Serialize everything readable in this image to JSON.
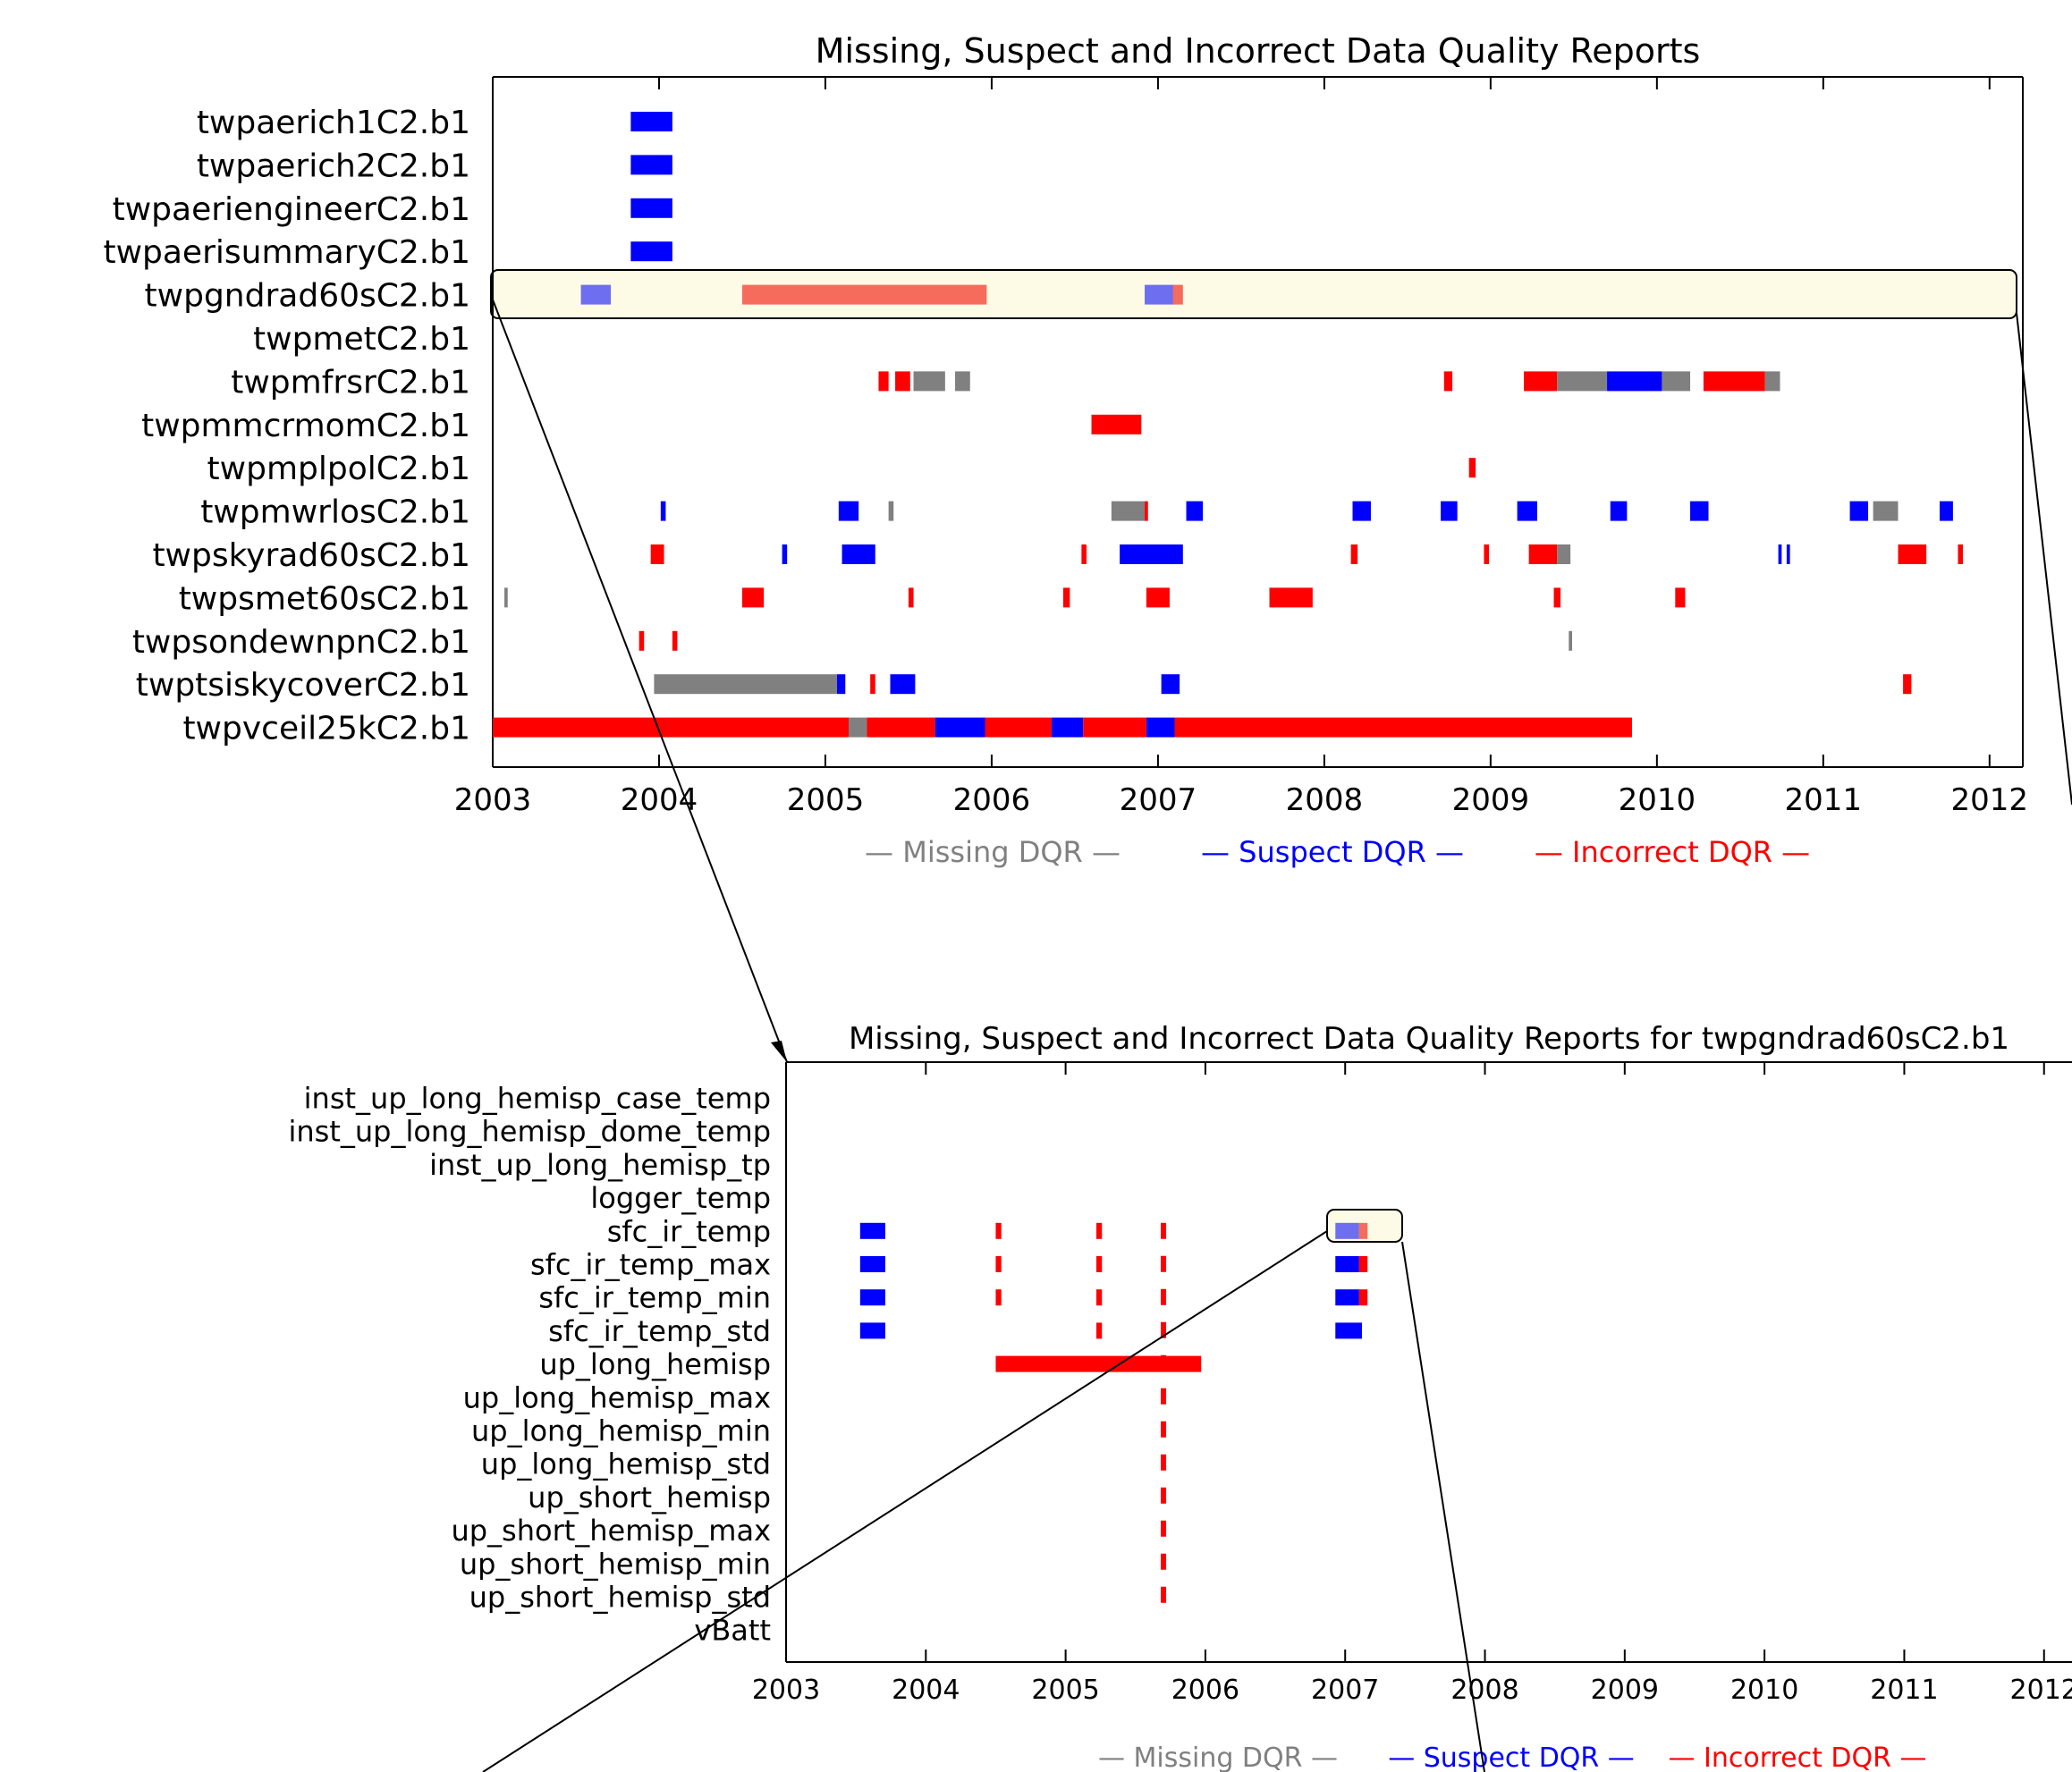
{
  "colors": {
    "missing": "#808080",
    "suspect": "#0000ff",
    "incorrect": "#ff0000",
    "suspect_light": "#6e6ef0",
    "incorrect_light": "#f56b5c",
    "highlight_fill": "#fdfbe6",
    "axis": "#000000"
  },
  "legend": {
    "missing": "— Missing DQR —",
    "suspect": "— Suspect DQR —",
    "incorrect": "— Incorrect DQR —"
  },
  "chart_data": [
    {
      "type": "timeline",
      "title": "Missing, Suspect and Incorrect Data Quality Reports",
      "xlim": [
        2003,
        2012.2
      ],
      "x_ticks": [
        "2003",
        "2004",
        "2005",
        "2006",
        "2007",
        "2008",
        "2009",
        "2010",
        "2011",
        "2012"
      ],
      "categories": [
        "twpaerich1C2.b1",
        "twpaerich2C2.b1",
        "twpaeriengineerC2.b1",
        "twpaerisummaryC2.b1",
        "twpgndrad60sC2.b1",
        "twpmetC2.b1",
        "twpmfrsrC2.b1",
        "twpmmcrmomC2.b1",
        "twpmplpolC2.b1",
        "twpmwrlosC2.b1",
        "twpskyrad60sC2.b1",
        "twpsmet60sC2.b1",
        "twpsondewnpnC2.b1",
        "twptsiskycoverC2.b1",
        "twpvceil25kC2.b1"
      ],
      "highlighted_row": 4,
      "segments": [
        {
          "row": 0,
          "start": 2003.83,
          "end": 2004.08,
          "kind": "suspect"
        },
        {
          "row": 1,
          "start": 2003.83,
          "end": 2004.08,
          "kind": "suspect"
        },
        {
          "row": 2,
          "start": 2003.83,
          "end": 2004.08,
          "kind": "suspect"
        },
        {
          "row": 3,
          "start": 2003.83,
          "end": 2004.08,
          "kind": "suspect"
        },
        {
          "row": 4,
          "start": 2003.53,
          "end": 2003.71,
          "kind": "suspect_light"
        },
        {
          "row": 4,
          "start": 2004.5,
          "end": 2005.97,
          "kind": "incorrect_light"
        },
        {
          "row": 4,
          "start": 2006.92,
          "end": 2007.1,
          "kind": "suspect_light"
        },
        {
          "row": 4,
          "start": 2007.09,
          "end": 2007.15,
          "kind": "incorrect_light"
        },
        {
          "row": 6,
          "start": 2005.32,
          "end": 2005.38,
          "kind": "incorrect"
        },
        {
          "row": 6,
          "start": 2005.42,
          "end": 2005.51,
          "kind": "incorrect"
        },
        {
          "row": 6,
          "start": 2005.53,
          "end": 2005.72,
          "kind": "missing"
        },
        {
          "row": 6,
          "start": 2005.78,
          "end": 2005.87,
          "kind": "missing"
        },
        {
          "row": 6,
          "start": 2008.72,
          "end": 2008.77,
          "kind": "incorrect"
        },
        {
          "row": 6,
          "start": 2009.2,
          "end": 2009.4,
          "kind": "incorrect"
        },
        {
          "row": 6,
          "start": 2009.4,
          "end": 2009.7,
          "kind": "missing"
        },
        {
          "row": 6,
          "start": 2009.7,
          "end": 2010.03,
          "kind": "suspect"
        },
        {
          "row": 6,
          "start": 2010.03,
          "end": 2010.2,
          "kind": "missing"
        },
        {
          "row": 6,
          "start": 2010.28,
          "end": 2010.65,
          "kind": "incorrect"
        },
        {
          "row": 6,
          "start": 2010.65,
          "end": 2010.74,
          "kind": "missing"
        },
        {
          "row": 7,
          "start": 2006.6,
          "end": 2006.9,
          "kind": "incorrect"
        },
        {
          "row": 8,
          "start": 2008.87,
          "end": 2008.91,
          "kind": "incorrect"
        },
        {
          "row": 9,
          "start": 2004.01,
          "end": 2004.04,
          "kind": "suspect"
        },
        {
          "row": 9,
          "start": 2005.08,
          "end": 2005.2,
          "kind": "suspect"
        },
        {
          "row": 9,
          "start": 2005.38,
          "end": 2005.41,
          "kind": "missing"
        },
        {
          "row": 9,
          "start": 2006.72,
          "end": 2006.92,
          "kind": "missing"
        },
        {
          "row": 9,
          "start": 2006.92,
          "end": 2006.94,
          "kind": "incorrect"
        },
        {
          "row": 9,
          "start": 2007.17,
          "end": 2007.27,
          "kind": "suspect"
        },
        {
          "row": 9,
          "start": 2008.17,
          "end": 2008.28,
          "kind": "suspect"
        },
        {
          "row": 9,
          "start": 2008.7,
          "end": 2008.8,
          "kind": "suspect"
        },
        {
          "row": 9,
          "start": 2009.16,
          "end": 2009.28,
          "kind": "suspect"
        },
        {
          "row": 9,
          "start": 2009.72,
          "end": 2009.82,
          "kind": "suspect"
        },
        {
          "row": 9,
          "start": 2010.2,
          "end": 2010.31,
          "kind": "suspect"
        },
        {
          "row": 9,
          "start": 2011.16,
          "end": 2011.27,
          "kind": "suspect"
        },
        {
          "row": 9,
          "start": 2011.3,
          "end": 2011.45,
          "kind": "missing"
        },
        {
          "row": 9,
          "start": 2011.7,
          "end": 2011.78,
          "kind": "suspect"
        },
        {
          "row": 10,
          "start": 2003.95,
          "end": 2004.03,
          "kind": "incorrect"
        },
        {
          "row": 10,
          "start": 2004.74,
          "end": 2004.77,
          "kind": "suspect"
        },
        {
          "row": 10,
          "start": 2005.1,
          "end": 2005.3,
          "kind": "suspect"
        },
        {
          "row": 10,
          "start": 2006.54,
          "end": 2006.57,
          "kind": "incorrect"
        },
        {
          "row": 10,
          "start": 2006.77,
          "end": 2007.15,
          "kind": "suspect"
        },
        {
          "row": 10,
          "start": 2008.16,
          "end": 2008.2,
          "kind": "incorrect"
        },
        {
          "row": 10,
          "start": 2008.96,
          "end": 2008.99,
          "kind": "incorrect"
        },
        {
          "row": 10,
          "start": 2009.23,
          "end": 2009.4,
          "kind": "incorrect"
        },
        {
          "row": 10,
          "start": 2009.4,
          "end": 2009.48,
          "kind": "missing"
        },
        {
          "row": 10,
          "start": 2010.73,
          "end": 2010.75,
          "kind": "suspect"
        },
        {
          "row": 10,
          "start": 2010.78,
          "end": 2010.8,
          "kind": "suspect"
        },
        {
          "row": 10,
          "start": 2011.45,
          "end": 2011.62,
          "kind": "incorrect"
        },
        {
          "row": 10,
          "start": 2011.81,
          "end": 2011.84,
          "kind": "incorrect"
        },
        {
          "row": 11,
          "start": 2003.07,
          "end": 2003.09,
          "kind": "missing"
        },
        {
          "row": 11,
          "start": 2004.5,
          "end": 2004.63,
          "kind": "incorrect"
        },
        {
          "row": 11,
          "start": 2005.5,
          "end": 2005.53,
          "kind": "incorrect"
        },
        {
          "row": 11,
          "start": 2006.43,
          "end": 2006.47,
          "kind": "incorrect"
        },
        {
          "row": 11,
          "start": 2006.93,
          "end": 2007.07,
          "kind": "incorrect"
        },
        {
          "row": 11,
          "start": 2007.67,
          "end": 2007.93,
          "kind": "incorrect"
        },
        {
          "row": 11,
          "start": 2009.38,
          "end": 2009.42,
          "kind": "incorrect"
        },
        {
          "row": 11,
          "start": 2010.11,
          "end": 2010.17,
          "kind": "incorrect"
        },
        {
          "row": 12,
          "start": 2003.88,
          "end": 2003.91,
          "kind": "incorrect"
        },
        {
          "row": 12,
          "start": 2004.08,
          "end": 2004.11,
          "kind": "incorrect"
        },
        {
          "row": 12,
          "start": 2009.47,
          "end": 2009.49,
          "kind": "missing"
        },
        {
          "row": 13,
          "start": 2003.97,
          "end": 2005.07,
          "kind": "missing"
        },
        {
          "row": 13,
          "start": 2005.07,
          "end": 2005.12,
          "kind": "suspect"
        },
        {
          "row": 13,
          "start": 2005.27,
          "end": 2005.3,
          "kind": "incorrect"
        },
        {
          "row": 13,
          "start": 2005.39,
          "end": 2005.54,
          "kind": "suspect"
        },
        {
          "row": 13,
          "start": 2007.02,
          "end": 2007.13,
          "kind": "suspect"
        },
        {
          "row": 13,
          "start": 2011.48,
          "end": 2011.53,
          "kind": "incorrect"
        },
        {
          "row": 14,
          "start": 2003.0,
          "end": 2005.14,
          "kind": "incorrect"
        },
        {
          "row": 14,
          "start": 2005.14,
          "end": 2005.25,
          "kind": "missing"
        },
        {
          "row": 14,
          "start": 2005.25,
          "end": 2005.66,
          "kind": "incorrect"
        },
        {
          "row": 14,
          "start": 2005.66,
          "end": 2005.96,
          "kind": "suspect"
        },
        {
          "row": 14,
          "start": 2005.96,
          "end": 2006.36,
          "kind": "incorrect"
        },
        {
          "row": 14,
          "start": 2006.36,
          "end": 2006.55,
          "kind": "suspect"
        },
        {
          "row": 14,
          "start": 2006.55,
          "end": 2006.93,
          "kind": "incorrect"
        },
        {
          "row": 14,
          "start": 2006.93,
          "end": 2007.1,
          "kind": "suspect"
        },
        {
          "row": 14,
          "start": 2007.1,
          "end": 2009.85,
          "kind": "incorrect"
        }
      ]
    },
    {
      "type": "timeline",
      "title": "Missing, Suspect and Incorrect Data Quality Reports for twpgndrad60sC2.b1",
      "xlim": [
        2003,
        2012.2
      ],
      "x_ticks": [
        "2003",
        "2004",
        "2005",
        "2006",
        "2007",
        "2008",
        "2009",
        "2010",
        "2011",
        "2012"
      ],
      "categories": [
        "inst_up_long_hemisp_case_temp",
        "inst_up_long_hemisp_dome_temp",
        "inst_up_long_hemisp_tp",
        "logger_temp",
        "sfc_ir_temp",
        "sfc_ir_temp_max",
        "sfc_ir_temp_min",
        "sfc_ir_temp_std",
        "up_long_hemisp",
        "up_long_hemisp_max",
        "up_long_hemisp_min",
        "up_long_hemisp_std",
        "up_short_hemisp",
        "up_short_hemisp_max",
        "up_short_hemisp_min",
        "up_short_hemisp_std",
        "vBatt"
      ],
      "highlighted_row": 4,
      "segments": [
        {
          "row": 4,
          "start": 2003.53,
          "end": 2003.71,
          "kind": "suspect"
        },
        {
          "row": 5,
          "start": 2003.53,
          "end": 2003.71,
          "kind": "suspect"
        },
        {
          "row": 6,
          "start": 2003.53,
          "end": 2003.71,
          "kind": "suspect"
        },
        {
          "row": 7,
          "start": 2003.53,
          "end": 2003.71,
          "kind": "suspect"
        },
        {
          "row": 4,
          "start": 2004.5,
          "end": 2004.54,
          "kind": "incorrect"
        },
        {
          "row": 5,
          "start": 2004.5,
          "end": 2004.54,
          "kind": "incorrect"
        },
        {
          "row": 6,
          "start": 2004.5,
          "end": 2004.54,
          "kind": "incorrect"
        },
        {
          "row": 4,
          "start": 2005.22,
          "end": 2005.26,
          "kind": "incorrect"
        },
        {
          "row": 5,
          "start": 2005.22,
          "end": 2005.26,
          "kind": "incorrect"
        },
        {
          "row": 6,
          "start": 2005.22,
          "end": 2005.26,
          "kind": "incorrect"
        },
        {
          "row": 7,
          "start": 2005.22,
          "end": 2005.26,
          "kind": "incorrect"
        },
        {
          "row": 8,
          "start": 2004.5,
          "end": 2005.97,
          "kind": "incorrect"
        },
        {
          "row": 4,
          "start": 2006.93,
          "end": 2007.1,
          "kind": "suspect_light"
        },
        {
          "row": 4,
          "start": 2007.1,
          "end": 2007.16,
          "kind": "incorrect_light"
        },
        {
          "row": 5,
          "start": 2006.93,
          "end": 2007.1,
          "kind": "suspect"
        },
        {
          "row": 5,
          "start": 2007.1,
          "end": 2007.16,
          "kind": "incorrect"
        },
        {
          "row": 6,
          "start": 2006.93,
          "end": 2007.1,
          "kind": "suspect"
        },
        {
          "row": 6,
          "start": 2007.1,
          "end": 2007.16,
          "kind": "incorrect"
        },
        {
          "row": 7,
          "start": 2006.93,
          "end": 2007.12,
          "kind": "suspect"
        }
      ],
      "dashed_lines": [
        {
          "x": 2005.7,
          "from_row": 4,
          "to_row": 15,
          "kind": "incorrect"
        }
      ]
    }
  ]
}
